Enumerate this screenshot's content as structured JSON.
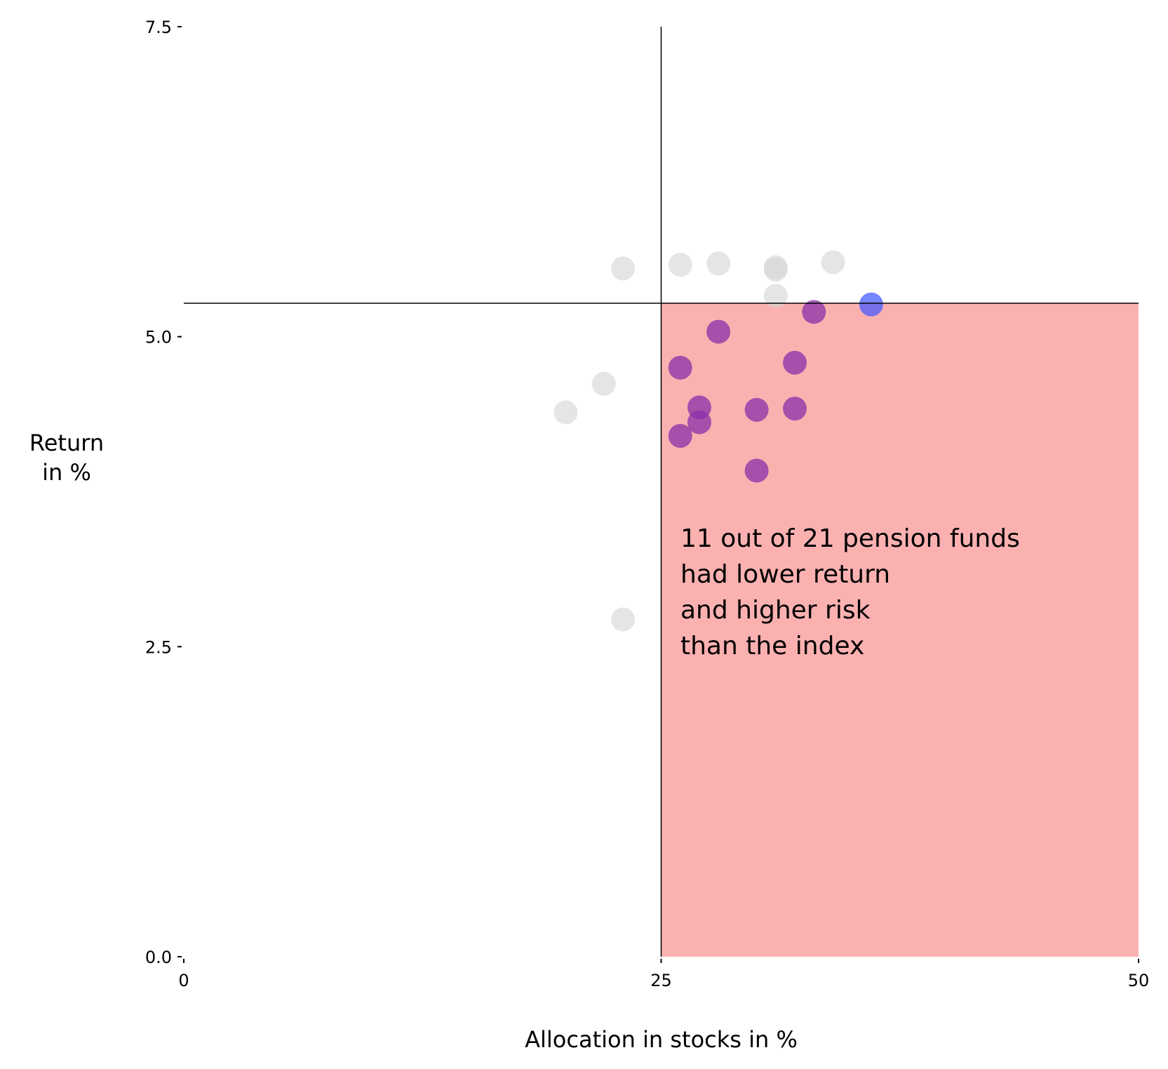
{
  "chart_data": {
    "type": "scatter",
    "xlabel": "Allocation in stocks in %",
    "ylabel_lines": [
      "Return",
      "in %"
    ],
    "xlim": [
      0,
      50
    ],
    "ylim": [
      0,
      7.5
    ],
    "x_ticks": [
      {
        "value": 0,
        "label": "0"
      },
      {
        "value": 25,
        "label": "25"
      },
      {
        "value": 50,
        "label": "50"
      }
    ],
    "y_ticks": [
      {
        "value": 0,
        "label": "0.0"
      },
      {
        "value": 2.5,
        "label": "2.5"
      },
      {
        "value": 5,
        "label": "5.0"
      },
      {
        "value": 7.5,
        "label": "7.5"
      }
    ],
    "grid": false,
    "index": {
      "x": 25,
      "y": 5.27
    },
    "highlight_region": {
      "x": [
        25,
        50
      ],
      "y": [
        0,
        5.27
      ],
      "color": "#fcb1b1"
    },
    "annotation_lines": [
      "11 out of 21 pension funds",
      "had lower return",
      "and higher risk",
      "than the index"
    ],
    "colors": {
      "other": "#d3d3d3",
      "below": "#8b2fa8",
      "index_fund": "#4a5cff",
      "reference_lines": "#000000"
    },
    "series": [
      {
        "role": "other",
        "points": [
          {
            "x": 23,
            "y": 5.55
          },
          {
            "x": 26,
            "y": 5.58
          },
          {
            "x": 28,
            "y": 5.59
          },
          {
            "x": 31,
            "y": 5.56
          },
          {
            "x": 31,
            "y": 5.54
          },
          {
            "x": 34,
            "y": 5.6
          },
          {
            "x": 31,
            "y": 5.33
          },
          {
            "x": 22,
            "y": 4.62
          },
          {
            "x": 20,
            "y": 4.39
          },
          {
            "x": 23,
            "y": 2.72
          }
        ]
      },
      {
        "role": "below",
        "points": [
          {
            "x": 33,
            "y": 5.2
          },
          {
            "x": 28,
            "y": 5.04
          },
          {
            "x": 26,
            "y": 4.75
          },
          {
            "x": 32,
            "y": 4.79
          },
          {
            "x": 27,
            "y": 4.43
          },
          {
            "x": 27,
            "y": 4.31
          },
          {
            "x": 30,
            "y": 4.41
          },
          {
            "x": 32,
            "y": 4.42
          },
          {
            "x": 26,
            "y": 4.2
          },
          {
            "x": 30,
            "y": 3.92
          }
        ]
      },
      {
        "role": "index_fund",
        "points": [
          {
            "x": 36,
            "y": 5.26
          }
        ]
      }
    ]
  }
}
